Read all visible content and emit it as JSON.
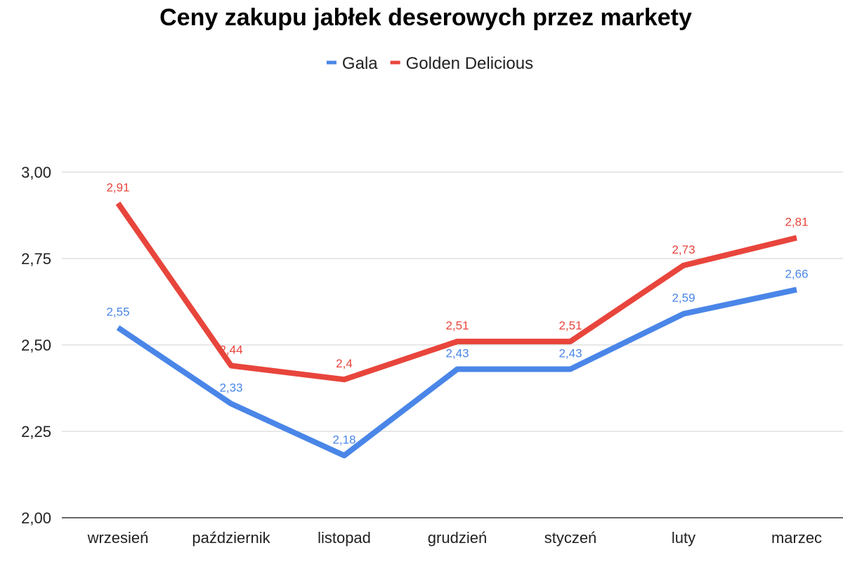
{
  "chart_data": {
    "type": "line",
    "title": "Ceny zakupu jabłek deserowych przez markety",
    "xlabel": "",
    "ylabel": "",
    "categories": [
      "wrzesień",
      "październik",
      "listopad",
      "grudzień",
      "styczeń",
      "luty",
      "marzec"
    ],
    "ylim": [
      2.0,
      3.0
    ],
    "yticks": [
      2.0,
      2.25,
      2.5,
      2.75,
      3.0
    ],
    "ytick_labels": [
      "2,00",
      "2,25",
      "2,50",
      "2,75",
      "3,00"
    ],
    "grid": true,
    "legend_position": "top-center",
    "series": [
      {
        "name": "Gala",
        "color": "#4a86e8",
        "values": [
          2.55,
          2.33,
          2.18,
          2.43,
          2.43,
          2.59,
          2.66
        ],
        "labels": [
          "2,55",
          "2,33",
          "2,18",
          "2,43",
          "2,43",
          "2,59",
          "2,66"
        ]
      },
      {
        "name": "Golden Delicious",
        "color": "#e8453c",
        "values": [
          2.91,
          2.44,
          2.4,
          2.51,
          2.51,
          2.73,
          2.81
        ],
        "labels": [
          "2,91",
          "2,44",
          "2,4",
          "2,51",
          "2,51",
          "2,73",
          "2,81"
        ]
      }
    ]
  }
}
